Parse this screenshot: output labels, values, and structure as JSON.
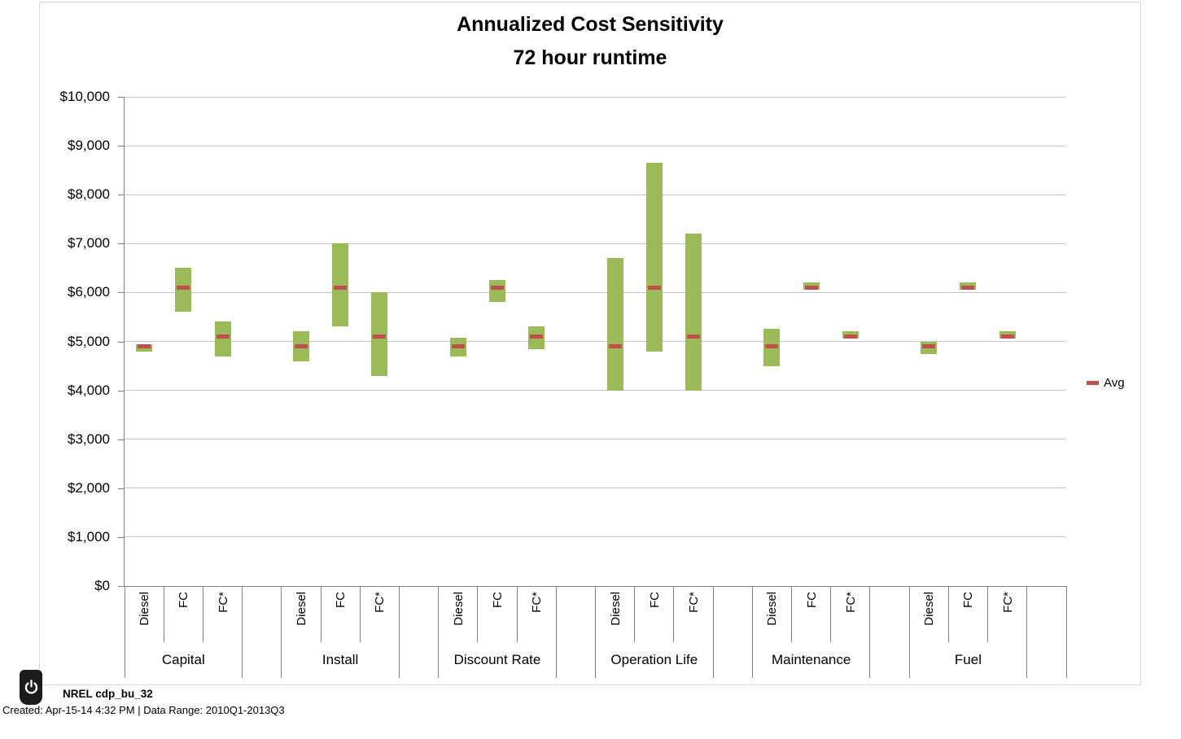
{
  "chart_data": {
    "type": "bar",
    "variant": "floating-range-bar",
    "title": "Annualized Cost Sensitivity",
    "subtitle": "72 hour runtime",
    "ylim": [
      0,
      10000
    ],
    "ytick_step": 1000,
    "y_ticks_top_down": [
      "$10,000",
      "$9,000",
      "$8,000",
      "$7,000",
      "$6,000",
      "$5,000",
      "$4,000",
      "$3,000",
      "$2,000",
      "$1,000",
      "$0"
    ],
    "grid": true,
    "bar_color": "#9bbb59",
    "avg_color": "#c0504d",
    "legend": [
      {
        "name": "Avg",
        "color": "#c0504d",
        "position": "right"
      }
    ],
    "groups": [
      {
        "label": "Capital",
        "bars": [
          {
            "label": "Diesel",
            "low": 4800,
            "high": 4950,
            "avg": 4900
          },
          {
            "label": "FC",
            "low": 5600,
            "high": 6500,
            "avg": 6100
          },
          {
            "label": "FC*",
            "low": 4700,
            "high": 5400,
            "avg": 5100
          }
        ]
      },
      {
        "label": "Install",
        "bars": [
          {
            "label": "Diesel",
            "low": 4600,
            "high": 5200,
            "avg": 4900
          },
          {
            "label": "FC",
            "low": 5300,
            "high": 7000,
            "avg": 6100
          },
          {
            "label": "FC*",
            "low": 4300,
            "high": 6000,
            "avg": 5100
          }
        ]
      },
      {
        "label": "Discount Rate",
        "bars": [
          {
            "label": "Diesel",
            "low": 4700,
            "high": 5080,
            "avg": 4900
          },
          {
            "label": "FC",
            "low": 5800,
            "high": 6250,
            "avg": 6100
          },
          {
            "label": "FC*",
            "low": 4850,
            "high": 5300,
            "avg": 5100
          }
        ]
      },
      {
        "label": "Operation Life",
        "bars": [
          {
            "label": "Diesel",
            "low": 4000,
            "high": 6700,
            "avg": 4900
          },
          {
            "label": "FC",
            "low": 4800,
            "high": 8650,
            "avg": 6100
          },
          {
            "label": "FC*",
            "low": 4000,
            "high": 7200,
            "avg": 5100
          }
        ]
      },
      {
        "label": "Maintenance",
        "bars": [
          {
            "label": "Diesel",
            "low": 4500,
            "high": 5250,
            "avg": 4900
          },
          {
            "label": "FC",
            "low": 6050,
            "high": 6200,
            "avg": 6100
          },
          {
            "label": "FC*",
            "low": 5050,
            "high": 5200,
            "avg": 5100
          }
        ]
      },
      {
        "label": "Fuel",
        "bars": [
          {
            "label": "Diesel",
            "low": 4750,
            "high": 5000,
            "avg": 4900
          },
          {
            "label": "FC",
            "low": 6050,
            "high": 6200,
            "avg": 6100
          },
          {
            "label": "FC*",
            "low": 5050,
            "high": 5200,
            "avg": 5100
          }
        ]
      }
    ]
  },
  "footer": {
    "source": "NREL cdp_bu_32",
    "created": "Created: Apr-15-14  4:32 PM | Data Range: 2010Q1-2013Q3",
    "icon_color": "#1c1c1c"
  }
}
